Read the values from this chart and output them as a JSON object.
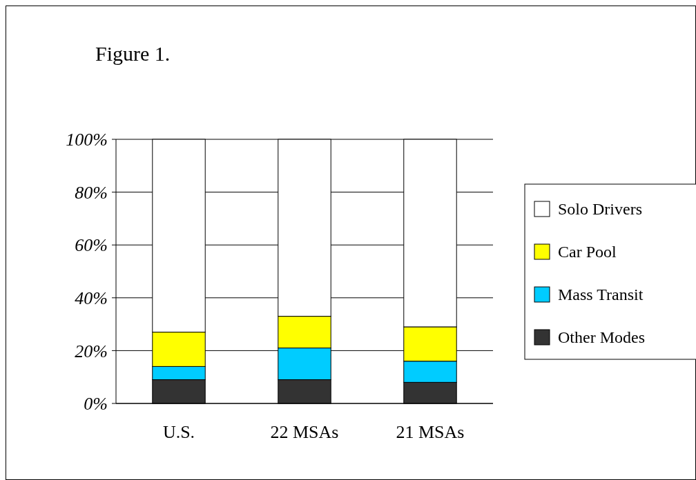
{
  "chart_data": {
    "type": "bar",
    "title": "Figure 1.",
    "stacked": true,
    "categories": [
      "U.S.",
      "22 MSAs",
      "21 MSAs"
    ],
    "series": [
      {
        "name": "Other Modes",
        "color": "#333333",
        "values": [
          9,
          9,
          8
        ]
      },
      {
        "name": "Mass Transit",
        "color": "#00ccff",
        "values": [
          5,
          12,
          8
        ]
      },
      {
        "name": "Car Pool",
        "color": "#ffff00",
        "values": [
          13,
          12,
          13
        ]
      },
      {
        "name": "Solo Drivers",
        "color": "#ffffff",
        "values": [
          73,
          67,
          71
        ]
      }
    ],
    "ylim": [
      0,
      100
    ],
    "yticks": [
      {
        "value": 0,
        "label": "0%"
      },
      {
        "value": 20,
        "label": "20%"
      },
      {
        "value": 40,
        "label": "40%"
      },
      {
        "value": 60,
        "label": "60%"
      },
      {
        "value": 80,
        "label": "80%"
      },
      {
        "value": 100,
        "label": "100%"
      }
    ],
    "grid": "y",
    "legend": "right"
  }
}
